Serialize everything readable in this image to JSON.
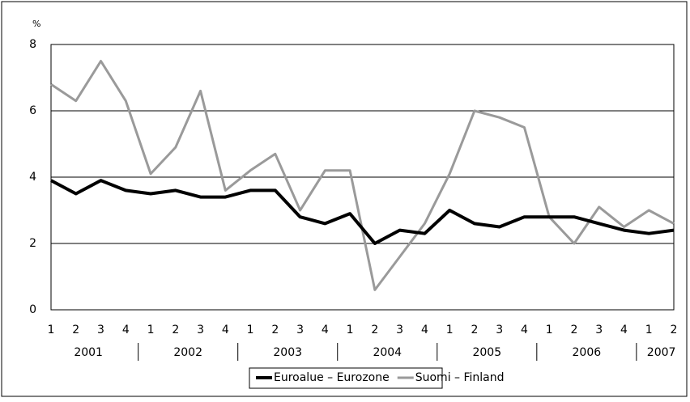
{
  "chart_data": {
    "type": "line",
    "y_label": "%",
    "category_groups": [
      {
        "label": "2001",
        "categories": [
          "1",
          "2",
          "3",
          "4"
        ]
      },
      {
        "label": "2002",
        "categories": [
          "1",
          "2",
          "3",
          "4"
        ]
      },
      {
        "label": "2003",
        "categories": [
          "1",
          "2",
          "3",
          "4"
        ]
      },
      {
        "label": "2004",
        "categories": [
          "1",
          "2",
          "3",
          "4"
        ]
      },
      {
        "label": "2005",
        "categories": [
          "1",
          "2",
          "3",
          "4"
        ]
      },
      {
        "label": "2006",
        "categories": [
          "1",
          "2",
          "3",
          "4"
        ]
      },
      {
        "label": "2007",
        "categories": [
          "1",
          "2"
        ]
      }
    ],
    "series": [
      {
        "name": "Euroalue – Eurozone",
        "color": "#000000",
        "values": [
          3.9,
          3.5,
          3.9,
          3.6,
          3.5,
          3.6,
          3.4,
          3.4,
          3.6,
          3.6,
          2.8,
          2.6,
          2.9,
          2.0,
          2.4,
          2.3,
          3.0,
          2.6,
          2.5,
          2.8,
          2.8,
          2.8,
          2.6,
          2.4,
          2.3,
          2.4
        ]
      },
      {
        "name": "Suomi – Finland",
        "color": "#9a9a9a",
        "values": [
          6.8,
          6.3,
          7.5,
          6.3,
          4.1,
          4.9,
          6.6,
          3.6,
          4.2,
          4.7,
          3.0,
          4.2,
          4.2,
          0.6,
          1.6,
          2.6,
          4.1,
          6.0,
          5.8,
          5.5,
          2.8,
          2.0,
          3.1,
          2.5,
          3.0,
          2.6
        ]
      }
    ],
    "ylim": [
      0,
      8
    ],
    "yticks": [
      0,
      2,
      4,
      6,
      8
    ],
    "grid": true
  }
}
